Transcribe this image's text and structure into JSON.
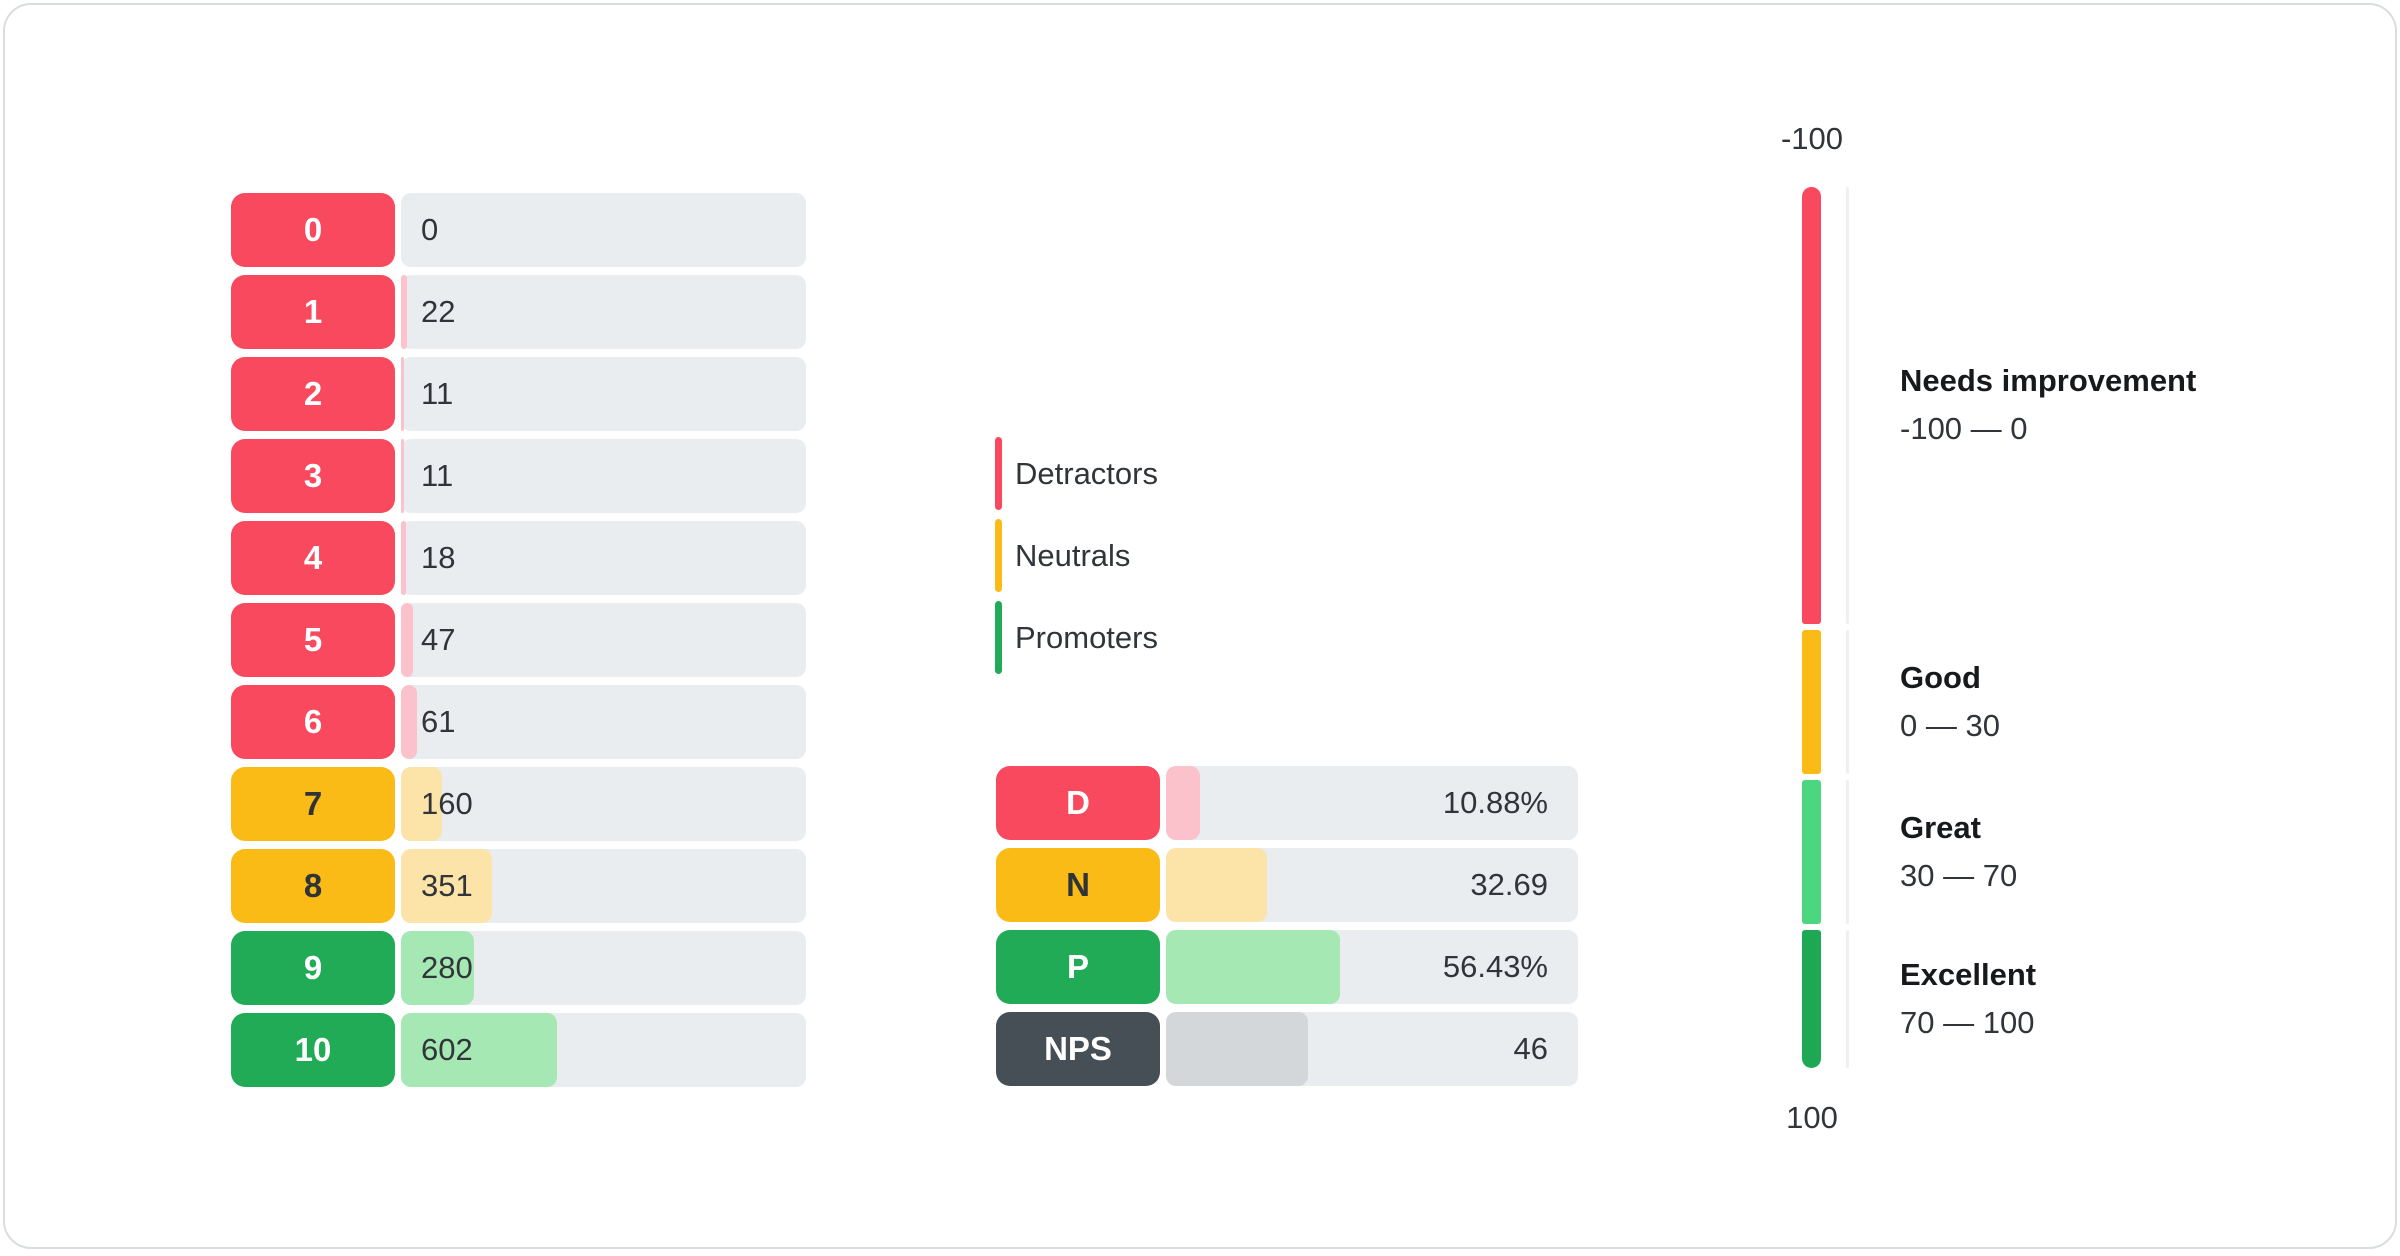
{
  "colors": {
    "card_border": "#D9DDE0",
    "track": "#E9EDF0",
    "title_text": "#17191C",
    "body_text": "#31353A",
    "groups": {
      "detractor": {
        "solid": "#F8495E",
        "light": "#FBC2CB",
        "label_text": "#FFFFFF"
      },
      "neutral": {
        "solid": "#FABB17",
        "light": "#FCE3A8",
        "label_text": "#2F3237"
      },
      "promoter": {
        "solid": "#21AB56",
        "light": "#A5E8B4",
        "label_text": "#FFFFFF"
      },
      "nps": {
        "solid": "#464E56",
        "light": "#D3D7DA",
        "label_text": "#FFFFFF"
      }
    },
    "gauge_zone_colors": [
      "#F8495E",
      "#FABB17",
      "#4BD67F",
      "#1EA854"
    ],
    "gauge_axis_line": "#EEF0F2"
  },
  "chart_data": {
    "type": "bar",
    "score_distribution": {
      "rows": [
        {
          "score": "0",
          "count": 0,
          "group": "detractor"
        },
        {
          "score": "1",
          "count": 22,
          "group": "detractor"
        },
        {
          "score": "2",
          "count": 11,
          "group": "detractor"
        },
        {
          "score": "3",
          "count": 11,
          "group": "detractor"
        },
        {
          "score": "4",
          "count": 18,
          "group": "detractor"
        },
        {
          "score": "5",
          "count": 47,
          "group": "detractor"
        },
        {
          "score": "6",
          "count": 61,
          "group": "detractor"
        },
        {
          "score": "7",
          "count": 160,
          "group": "neutral"
        },
        {
          "score": "8",
          "count": 351,
          "group": "neutral"
        },
        {
          "score": "9",
          "count": 280,
          "group": "promoter"
        },
        {
          "score": "10",
          "count": 602,
          "group": "promoter"
        }
      ]
    },
    "legend": [
      {
        "label": "Detractors",
        "group": "detractor"
      },
      {
        "label": "Neutrals",
        "group": "neutral"
      },
      {
        "label": "Promoters",
        "group": "promoter"
      }
    ],
    "summary": [
      {
        "label": "D",
        "value": 10.88,
        "display": "10.88%",
        "group": "detractor"
      },
      {
        "label": "N",
        "value": 32.69,
        "display": "32.69",
        "group": "neutral"
      },
      {
        "label": "P",
        "value": 56.43,
        "display": "56.43%",
        "group": "promoter"
      },
      {
        "label": "NPS",
        "value": 46,
        "display": "46",
        "group": "nps"
      }
    ],
    "gauge": {
      "top_label": "-100",
      "bottom_label": "100",
      "min": -100,
      "max": 100,
      "zones": [
        {
          "title": "Needs improvement",
          "range_label": "-100 — 0",
          "from": -100,
          "to": 0
        },
        {
          "title": "Good",
          "range_label": "0 — 30",
          "from": 0,
          "to": 30
        },
        {
          "title": "Great",
          "range_label": "30 — 70",
          "from": 30,
          "to": 70
        },
        {
          "title": "Excellent",
          "range_label": "70 — 100",
          "from": 70,
          "to": 100
        }
      ]
    }
  }
}
